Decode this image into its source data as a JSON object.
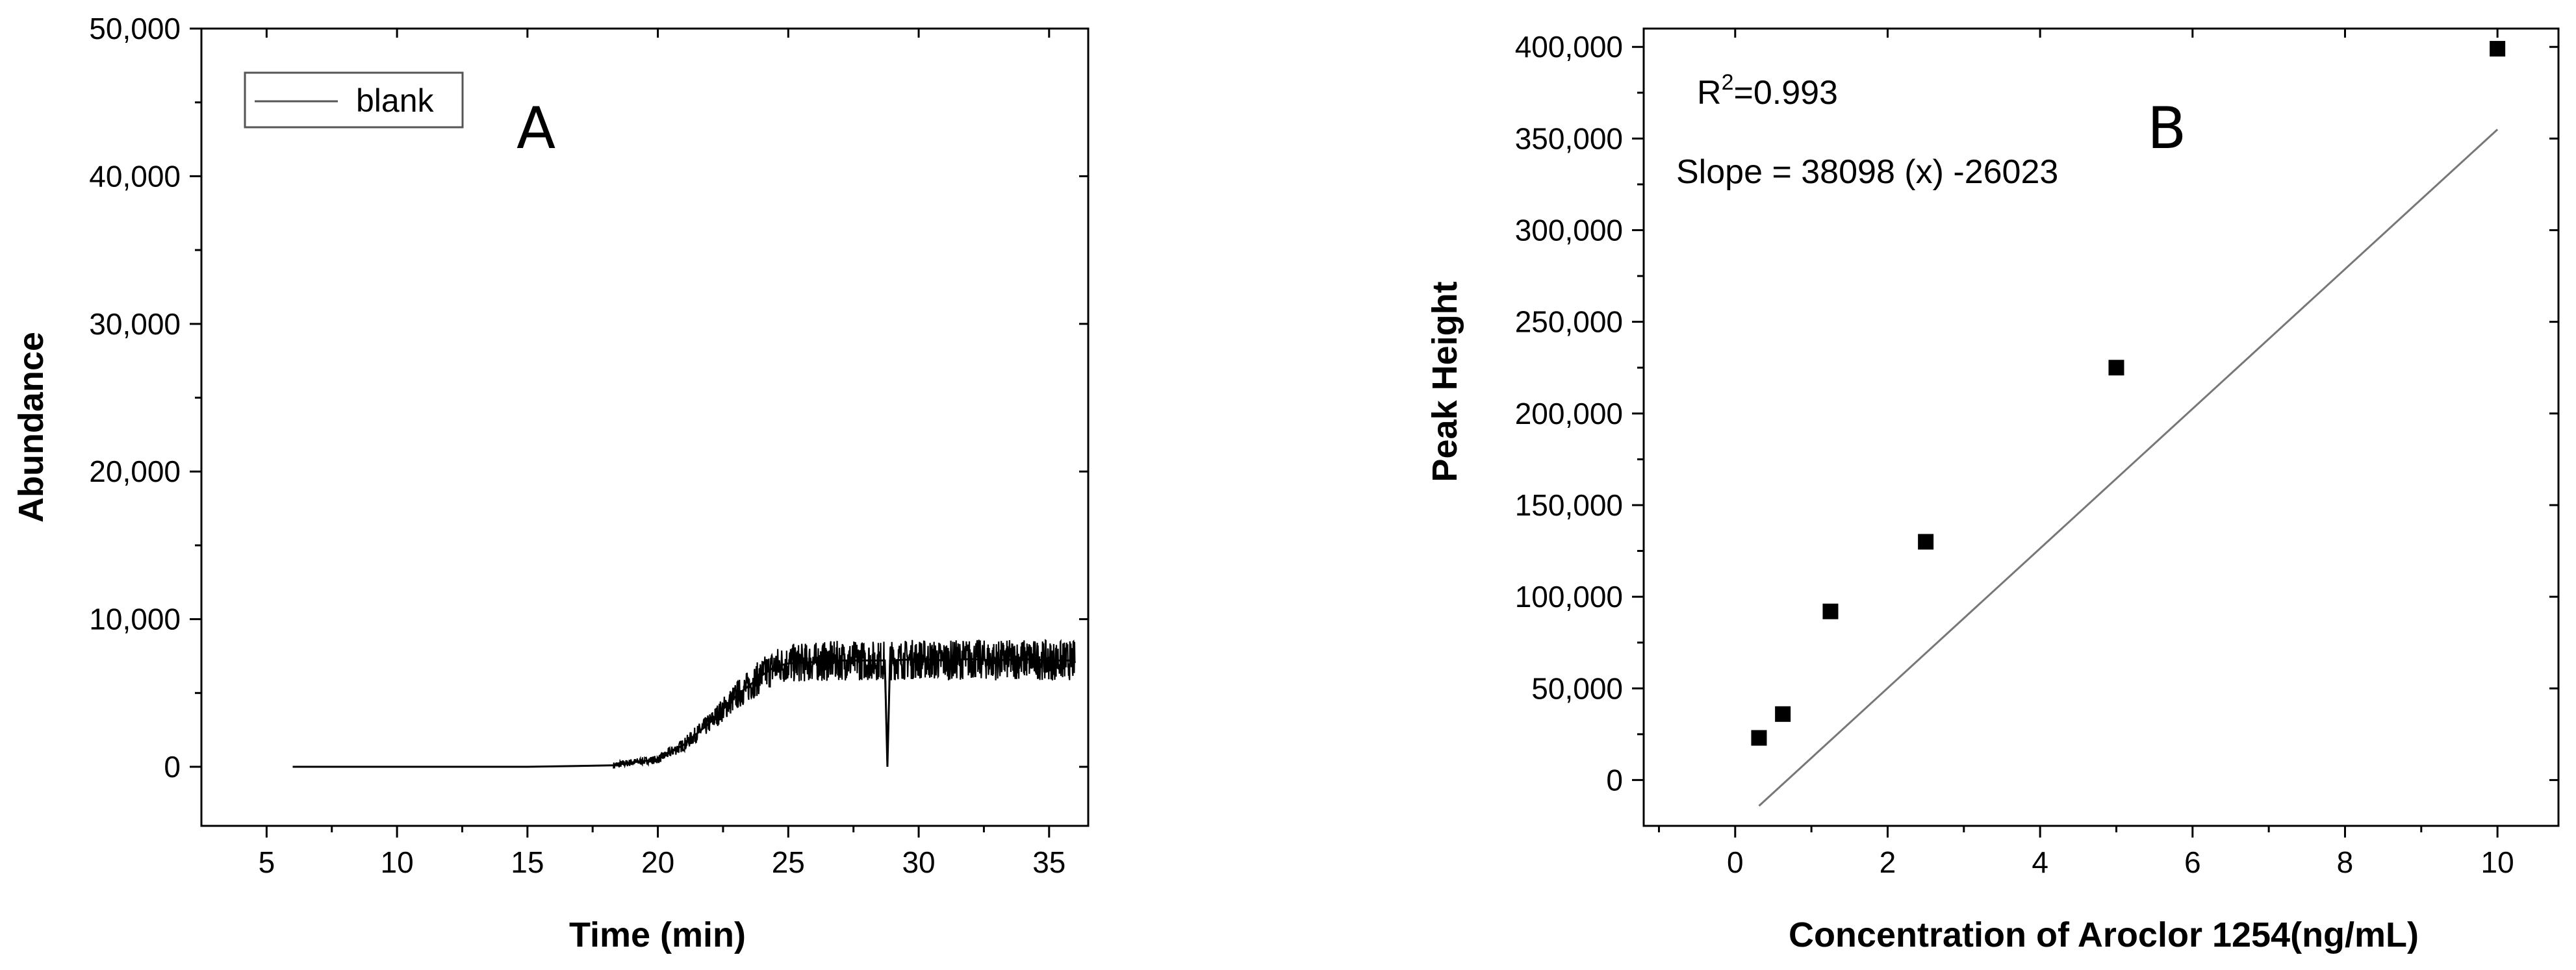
{
  "chart_data": [
    {
      "type": "line",
      "panel_label": "A",
      "xlabel": "Time (min)",
      "ylabel": "Abundance",
      "xlim": [
        2.5,
        36.5
      ],
      "ylim": [
        -4000,
        50000
      ],
      "x_ticks": [
        5,
        10,
        15,
        20,
        25,
        30,
        35
      ],
      "y_ticks": [
        0,
        10000,
        20000,
        30000,
        40000,
        50000
      ],
      "x_tick_labels": [
        "5",
        "10",
        "15",
        "20",
        "25",
        "30",
        "35"
      ],
      "y_tick_labels": [
        "0",
        "10,000",
        "20,000",
        "30,000",
        "40,000",
        "50,000"
      ],
      "legend": {
        "position": "top-left",
        "entries": [
          "blank"
        ]
      },
      "grid": false,
      "series": [
        {
          "name": "blank",
          "color": "#000000",
          "x": [
            6.0,
            6.5,
            10.0,
            12.2,
            12.4,
            15.0,
            18.3,
            19.0,
            20.0,
            21.0,
            22.0,
            23.0,
            24.0,
            24.5,
            25.0,
            26.0,
            27.0,
            28.0,
            28.7,
            28.8,
            28.9,
            30.0,
            31.0,
            32.0,
            33.0,
            34.0,
            35.0,
            36.0
          ],
          "y": [
            0,
            0,
            0,
            0,
            0,
            0,
            100,
            300,
            500,
            1500,
            3000,
            4800,
            6200,
            6800,
            7000,
            7100,
            7200,
            7200,
            7200,
            0,
            7200,
            7300,
            7200,
            7300,
            7200,
            7300,
            7200,
            7200
          ]
        }
      ]
    },
    {
      "type": "scatter",
      "panel_label": "B",
      "xlabel": "Concentration of Aroclor 1254(ng/mL)",
      "ylabel": "Peak Height",
      "xlim": [
        -1.2,
        10.8
      ],
      "ylim": [
        -25000,
        410000
      ],
      "x_ticks": [
        0,
        2,
        4,
        6,
        8,
        10
      ],
      "y_ticks": [
        0,
        50000,
        100000,
        150000,
        200000,
        250000,
        300000,
        350000,
        400000
      ],
      "x_tick_labels": [
        "0",
        "2",
        "4",
        "6",
        "8",
        "10"
      ],
      "y_tick_labels": [
        "0",
        "50,000",
        "100,000",
        "150,000",
        "200,000",
        "250,000",
        "300,000",
        "350,000",
        "400,000"
      ],
      "grid": false,
      "annotations": {
        "r2_base": "R",
        "r2_exp": "2",
        "r2_value": "=0.993",
        "slope": "Slope = 38098 (x) -26023"
      },
      "points": {
        "x": [
          0.3125,
          0.625,
          1.25,
          2.5,
          5.0,
          10.0
        ],
        "y": [
          23000,
          36000,
          92000,
          130000,
          225000,
          399000
        ]
      },
      "fit": {
        "slope": 38098,
        "intercept": -26023,
        "x_range": [
          0.3125,
          10.0
        ]
      }
    }
  ]
}
